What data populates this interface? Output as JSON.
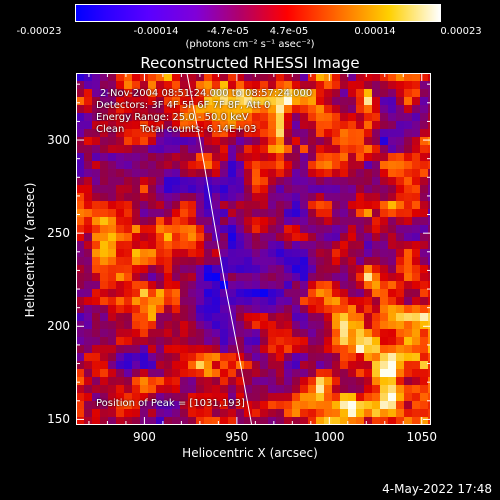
{
  "colorbar": {
    "ticks": [
      "-0.00023",
      "-0.00014",
      "-4.7e-05",
      "4.7e-05",
      "0.00014",
      "0.00023"
    ],
    "tick_values": [
      -0.00023,
      -0.00014,
      -4.7e-05,
      4.7e-05,
      0.00014,
      0.00023
    ],
    "units": "(photons cm⁻² s⁻¹ asec⁻²)"
  },
  "chart_data": {
    "type": "heatmap",
    "title": "Reconstructed RHESSI Image",
    "xlabel": "Heliocentric X (arcsec)",
    "ylabel": "Heliocentric Y (arcsec)",
    "xlim": [
      863,
      1055
    ],
    "ylim": [
      147,
      336
    ],
    "xticks": [
      900,
      950,
      1000,
      1050
    ],
    "yticks": [
      150,
      200,
      250,
      300
    ],
    "zlim": [
      -0.00023,
      0.00023
    ],
    "colormap": "blue-purple-red-yellow-white",
    "limb_curve": [
      [
        923,
        336
      ],
      [
        930,
        300
      ],
      [
        937,
        260
      ],
      [
        944,
        220
      ],
      [
        951,
        185
      ],
      [
        958,
        147
      ]
    ],
    "peak_position": [
      1031,
      193
    ]
  },
  "info": {
    "time_range": "2-Nov-2004 08:51:24.000 to 08:57:24.000",
    "detectors": "Detectors: 3F 4F 5F 6F 7F 8F, Att 0",
    "energy": "Energy Range: 25.0 - 50.0 keV",
    "method": "Clean     Total counts: 6.14E+03",
    "peak_text": "Position of Peak = [1031,193]"
  },
  "timestamp": "4-May-2022 17:48"
}
